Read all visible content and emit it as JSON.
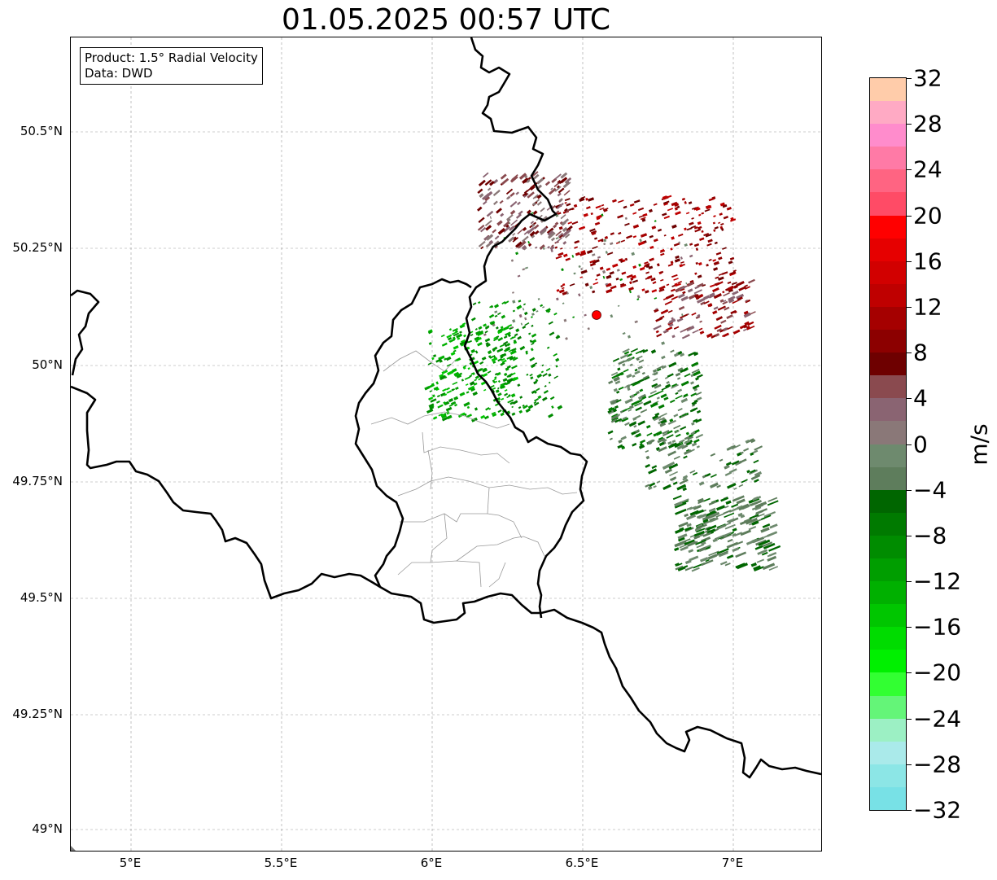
{
  "title": "01.05.2025 00:57 UTC",
  "info": {
    "product": "Product: 1.5° Radial Velocity",
    "data": "Data: DWD"
  },
  "map": {
    "lon_range": [
      4.8,
      7.3
    ],
    "lat_range": [
      48.95,
      50.7
    ],
    "gridlines": true,
    "lon_ticks": [
      "5°E",
      "5.5°E",
      "6°E",
      "6.5°E",
      "7°E"
    ],
    "lat_ticks": [
      "49°N",
      "49.25°N",
      "49.5°N",
      "49.75°N",
      "50°N",
      "50.25°N",
      "50.5°N"
    ],
    "radar_site": {
      "lon": 6.548,
      "lat": 50.11,
      "color": "#ff0000"
    }
  },
  "colorbar": {
    "label": "m/s",
    "tick_labels": [
      "32",
      "28",
      "24",
      "20",
      "16",
      "12",
      "8",
      "4",
      "0",
      "−4",
      "−8",
      "−12",
      "−16",
      "−20",
      "−24",
      "−28",
      "−32"
    ],
    "range": [
      -32,
      32
    ],
    "colors_top_to_bottom": [
      "#ffccaa",
      "#ffaac4",
      "#ff8ccc",
      "#ff7aa6",
      "#ff6482",
      "#ff4b66",
      "#ff0000",
      "#e60000",
      "#d20000",
      "#bf0000",
      "#a50000",
      "#8c0000",
      "#6e0000",
      "#8a4a4f",
      "#8a6472",
      "#8a7878",
      "#6e8a6e",
      "#5e7d5c",
      "#006600",
      "#007a00",
      "#008c00",
      "#009e00",
      "#00b000",
      "#00c600",
      "#00dc00",
      "#00f000",
      "#32ff32",
      "#64f578",
      "#9cf0c4",
      "#aaeaea",
      "#8ce6e6",
      "#78e1e6"
    ]
  }
}
